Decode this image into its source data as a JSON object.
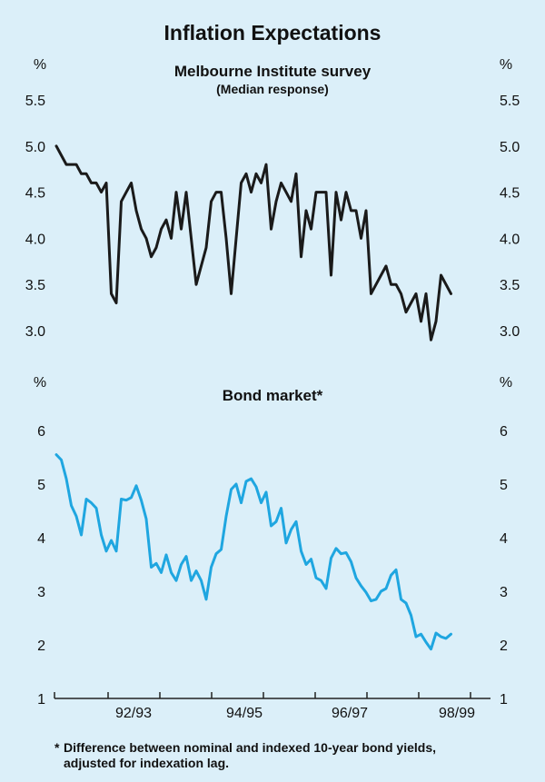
{
  "title": "Inflation Expectations",
  "footnote": {
    "marker": "*",
    "line1": "Difference between nominal and indexed 10-year bond yields,",
    "line2": "adjusted for indexation lag."
  },
  "colors": {
    "background": "#dbeff9",
    "melbourne_series": "#1a1a1a",
    "bond_series": "#1fa6e0",
    "axis": "#222222"
  },
  "chart_data": [
    {
      "type": "line",
      "title": "Melbourne Institute survey",
      "subtitle": "(Median response)",
      "unit_label": "%",
      "ylim": [
        2.65,
        5.55
      ],
      "yticks": [
        "5.5",
        "5.0",
        "4.5",
        "4.0",
        "3.5",
        "3.0"
      ],
      "xlim": [
        0,
        82
      ],
      "grid": false,
      "series": [
        {
          "color": "#1a1a1a",
          "x": [
            0,
            1,
            2,
            3,
            4,
            5,
            6,
            7,
            8,
            9,
            10,
            11,
            12,
            13,
            14,
            15,
            16,
            17,
            18,
            19,
            20,
            21,
            22,
            23,
            24,
            25,
            26,
            27,
            28,
            29,
            30,
            31,
            32,
            33,
            34,
            35,
            36,
            37,
            38,
            39,
            40,
            41,
            42,
            43,
            44,
            45,
            46,
            47,
            48,
            49,
            50,
            51,
            52,
            53,
            54,
            55,
            56,
            57,
            58,
            59,
            60,
            61,
            62,
            63,
            64,
            65,
            66,
            67,
            68,
            69,
            70,
            71,
            72,
            73,
            74,
            75,
            76,
            77,
            78,
            79
          ],
          "values": [
            5.0,
            4.9,
            4.8,
            4.8,
            4.8,
            4.7,
            4.7,
            4.6,
            4.6,
            4.5,
            4.6,
            3.4,
            3.3,
            4.4,
            4.5,
            4.6,
            4.3,
            4.1,
            4.0,
            3.8,
            3.9,
            4.1,
            4.2,
            4.0,
            4.5,
            4.1,
            4.5,
            4.0,
            3.5,
            3.7,
            3.9,
            4.4,
            4.5,
            4.5,
            4.0,
            3.4,
            4.0,
            4.6,
            4.7,
            4.5,
            4.7,
            4.6,
            4.8,
            4.1,
            4.4,
            4.6,
            4.5,
            4.4,
            4.7,
            3.8,
            4.3,
            4.1,
            4.5,
            4.5,
            4.5,
            3.6,
            4.5,
            4.2,
            4.5,
            4.3,
            4.3,
            4.0,
            4.3,
            3.4,
            3.5,
            3.6,
            3.7,
            3.5,
            3.5,
            3.4,
            3.2,
            3.3,
            3.4,
            3.1,
            3.4,
            2.9,
            3.1,
            3.6,
            3.5,
            3.4
          ]
        }
      ]
    },
    {
      "type": "line",
      "title": "Bond market*",
      "unit_label": "%",
      "ylim": [
        1,
        6.55
      ],
      "yticks": [
        "6",
        "5",
        "4",
        "3",
        "2",
        "1"
      ],
      "xlim": [
        0,
        82
      ],
      "xticks": [
        "92/93",
        "94/95",
        "96/97",
        "98/99"
      ],
      "grid": false,
      "series": [
        {
          "color": "#1fa6e0",
          "x": [
            0,
            1,
            2,
            3,
            4,
            5,
            6,
            7,
            8,
            9,
            10,
            11,
            12,
            13,
            14,
            15,
            16,
            17,
            18,
            19,
            20,
            21,
            22,
            23,
            24,
            25,
            26,
            27,
            28,
            29,
            30,
            31,
            32,
            33,
            34,
            35,
            36,
            37,
            38,
            39,
            40,
            41,
            42,
            43,
            44,
            45,
            46,
            47,
            48,
            49,
            50,
            51,
            52,
            53,
            54,
            55,
            56,
            57,
            58,
            59,
            60,
            61,
            62,
            63,
            64,
            65,
            66,
            67,
            68,
            69,
            70,
            71,
            72,
            73,
            74,
            75,
            76,
            77,
            78,
            79
          ],
          "values": [
            5.55,
            5.45,
            5.1,
            4.6,
            4.4,
            4.05,
            4.72,
            4.65,
            4.55,
            4.05,
            3.75,
            3.95,
            3.75,
            4.72,
            4.7,
            4.75,
            4.97,
            4.7,
            4.35,
            3.45,
            3.52,
            3.35,
            3.68,
            3.35,
            3.2,
            3.5,
            3.65,
            3.2,
            3.38,
            3.2,
            2.85,
            3.45,
            3.7,
            3.78,
            4.4,
            4.9,
            5.0,
            4.65,
            5.05,
            5.1,
            4.95,
            4.65,
            4.85,
            4.22,
            4.3,
            4.55,
            3.9,
            4.15,
            4.3,
            3.75,
            3.5,
            3.6,
            3.25,
            3.2,
            3.05,
            3.62,
            3.8,
            3.7,
            3.72,
            3.55,
            3.25,
            3.1,
            2.98,
            2.82,
            2.85,
            3.0,
            3.05,
            3.3,
            3.4,
            2.85,
            2.78,
            2.55,
            2.15,
            2.2,
            2.05,
            1.92,
            2.22,
            2.15,
            2.12,
            2.2
          ]
        }
      ]
    }
  ]
}
